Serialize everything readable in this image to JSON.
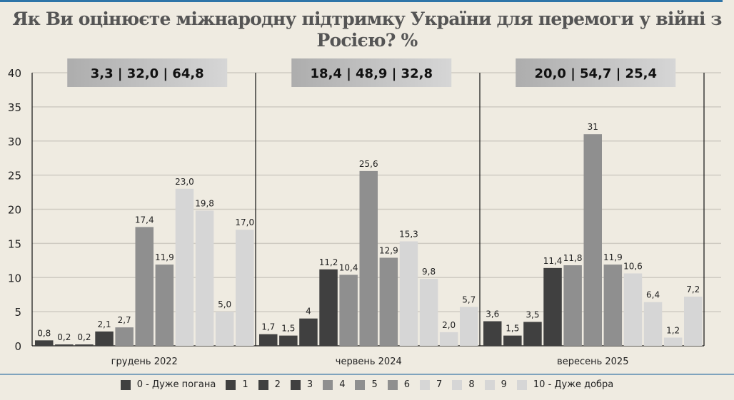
{
  "title": "Як Ви оцінюєте міжнародну підтримку України для перемоги у війні з Росією? %",
  "colors": {
    "dark": "#404040",
    "mid": "#8f8f8f",
    "light": "#d6d6d6",
    "accent": "#2e75a8",
    "background": "#efebe1"
  },
  "chart_data": {
    "type": "bar",
    "title": "Як Ви оцінюєте міжнародну підтримку України для перемоги у війні з Росією? %",
    "ylim": [
      0,
      40
    ],
    "yticks": [
      0,
      5,
      10,
      15,
      20,
      25,
      30,
      35,
      40
    ],
    "grid": true,
    "legend_position": "bottom",
    "categories": [
      "0 - Дуже погана",
      "1",
      "2",
      "3",
      "4",
      "5",
      "6",
      "7",
      "8",
      "9",
      "10 - Дуже добра"
    ],
    "category_colors": [
      "dark",
      "dark",
      "dark",
      "dark",
      "mid",
      "mid",
      "mid",
      "light",
      "light",
      "light",
      "light"
    ],
    "groups": [
      {
        "name": "грудень 2022",
        "summary": "3,3 | 32,0 | 64,8",
        "values": [
          0.8,
          0.2,
          0.2,
          2.1,
          2.7,
          17.4,
          11.9,
          23.0,
          19.8,
          5.0,
          17.0
        ],
        "labels": [
          "0,8",
          "0,2",
          "0,2",
          "2,1",
          "2,7",
          "17,4",
          "11,9",
          "23,0",
          "19,8",
          "5,0",
          "17,0"
        ]
      },
      {
        "name": "червень 2024",
        "summary": "18,4 | 48,9 | 32,8",
        "values": [
          1.7,
          1.5,
          4,
          11.2,
          10.4,
          25.6,
          12.9,
          15.3,
          9.8,
          2.0,
          5.7
        ],
        "labels": [
          "1,7",
          "1,5",
          "4",
          "11,2",
          "10,4",
          "25,6",
          "12,9",
          "15,3",
          "9,8",
          "2,0",
          "5,7"
        ]
      },
      {
        "name": "вересень 2025",
        "summary": "20,0 | 54,7 | 25,4",
        "values": [
          3.6,
          1.5,
          3.5,
          11.4,
          11.8,
          31,
          11.9,
          10.6,
          6.4,
          1.2,
          7.2
        ],
        "labels": [
          "3,6",
          "1,5",
          "3,5",
          "11,4",
          "11,8",
          "31",
          "11,9",
          "10,6",
          "6,4",
          "1,2",
          "7,2"
        ]
      }
    ]
  }
}
